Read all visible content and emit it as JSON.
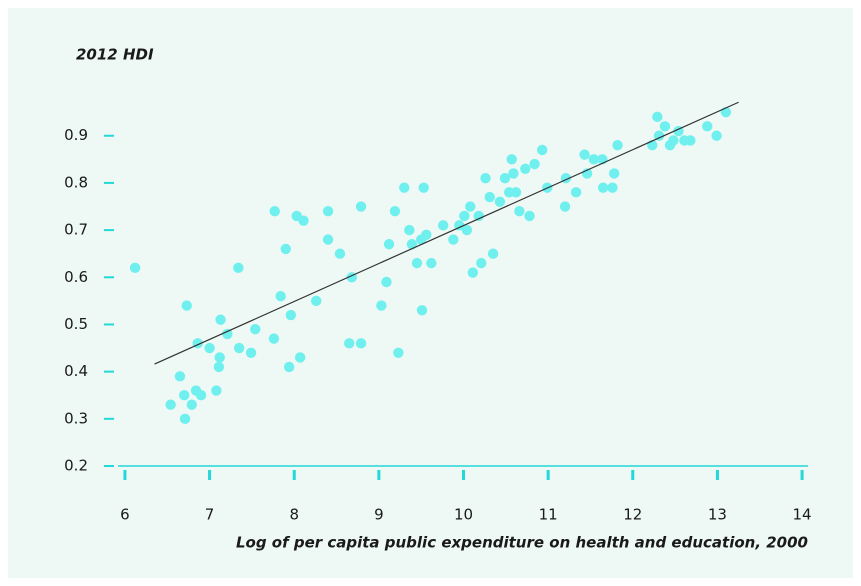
{
  "chart_data": {
    "type": "scatter",
    "title": "2012 HDI",
    "x_label": "Log of per capita public expenditure on health and education, 2000",
    "color": "#6ff0ef",
    "xlim": [
      5.8,
      14.2
    ],
    "ylim": [
      0.2,
      0.98
    ],
    "xticks": [
      6,
      7,
      8,
      9,
      10,
      11,
      12,
      13,
      14
    ],
    "yticks": [
      0.2,
      0.3,
      0.4,
      0.5,
      0.6,
      0.7,
      0.8,
      0.9
    ],
    "x": [
      6.12,
      6.54,
      6.65,
      6.7,
      6.71,
      6.73,
      6.79,
      6.84,
      6.86,
      6.9,
      7.0,
      7.08,
      7.11,
      7.12,
      7.13,
      7.21,
      7.34,
      7.35,
      7.49,
      7.54,
      7.76,
      7.77,
      7.84,
      7.9,
      7.94,
      7.96,
      8.03,
      8.07,
      8.11,
      8.26,
      8.4,
      8.4,
      8.54,
      8.65,
      8.68,
      8.79,
      8.79,
      9.03,
      9.09,
      9.12,
      9.19,
      9.23,
      9.3,
      9.36,
      9.39,
      9.45,
      9.5,
      9.51,
      9.53,
      9.56,
      9.62,
      9.76,
      9.88,
      9.95,
      10.01,
      10.04,
      10.08,
      10.11,
      10.18,
      10.21,
      10.26,
      10.31,
      10.35,
      10.43,
      10.49,
      10.54,
      10.57,
      10.59,
      10.62,
      10.66,
      10.73,
      10.78,
      10.84,
      10.93,
      10.99,
      11.2,
      11.21,
      11.33,
      11.43,
      11.46,
      11.54,
      11.64,
      11.65,
      11.76,
      11.78,
      11.82,
      12.23,
      12.29,
      12.31,
      12.38,
      12.44,
      12.48,
      12.54,
      12.61,
      12.68,
      12.88,
      12.99,
      13.1
    ],
    "values": [
      0.62,
      0.33,
      0.39,
      0.35,
      0.3,
      0.54,
      0.33,
      0.36,
      0.46,
      0.35,
      0.45,
      0.36,
      0.41,
      0.43,
      0.51,
      0.48,
      0.62,
      0.45,
      0.44,
      0.49,
      0.47,
      0.74,
      0.56,
      0.66,
      0.41,
      0.52,
      0.73,
      0.43,
      0.72,
      0.55,
      0.68,
      0.74,
      0.65,
      0.46,
      0.6,
      0.46,
      0.75,
      0.54,
      0.59,
      0.67,
      0.74,
      0.44,
      0.79,
      0.7,
      0.67,
      0.63,
      0.68,
      0.53,
      0.79,
      0.69,
      0.63,
      0.71,
      0.68,
      0.71,
      0.73,
      0.7,
      0.75,
      0.61,
      0.73,
      0.63,
      0.81,
      0.77,
      0.65,
      0.76,
      0.81,
      0.78,
      0.85,
      0.82,
      0.78,
      0.74,
      0.83,
      0.73,
      0.84,
      0.87,
      0.79,
      0.75,
      0.81,
      0.78,
      0.86,
      0.82,
      0.85,
      0.85,
      0.79,
      0.79,
      0.82,
      0.88,
      0.88,
      0.94,
      0.9,
      0.92,
      0.88,
      0.89,
      0.91,
      0.89,
      0.89,
      0.92,
      0.9,
      0.95
    ],
    "trend_line": {
      "x": [
        6.35,
        13.25
      ],
      "y": [
        0.416,
        0.971
      ],
      "color": "#333333"
    }
  }
}
